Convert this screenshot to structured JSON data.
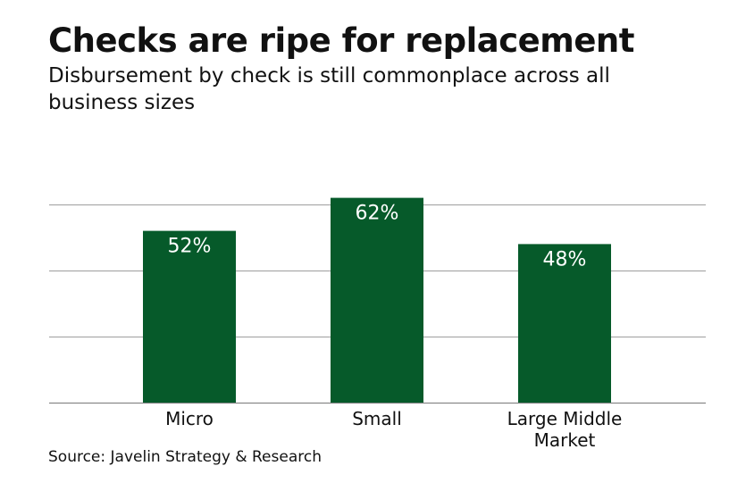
{
  "chart_data": {
    "type": "bar",
    "title": "Checks are ripe for replacement",
    "subtitle": "Disbursement by check is still commonplace across all business sizes",
    "categories": [
      "Micro",
      "Small",
      "Large Middle Market"
    ],
    "values": [
      52,
      62,
      48
    ],
    "data_labels": [
      "52%",
      "62%",
      "48%"
    ],
    "ylim": [
      0,
      60
    ],
    "gridlines": [
      0,
      20,
      40,
      60
    ],
    "grid": true,
    "y_tick_labels_shown": false,
    "bar_color": "#065a2a",
    "source": "Source: Javelin Strategy & Research"
  }
}
